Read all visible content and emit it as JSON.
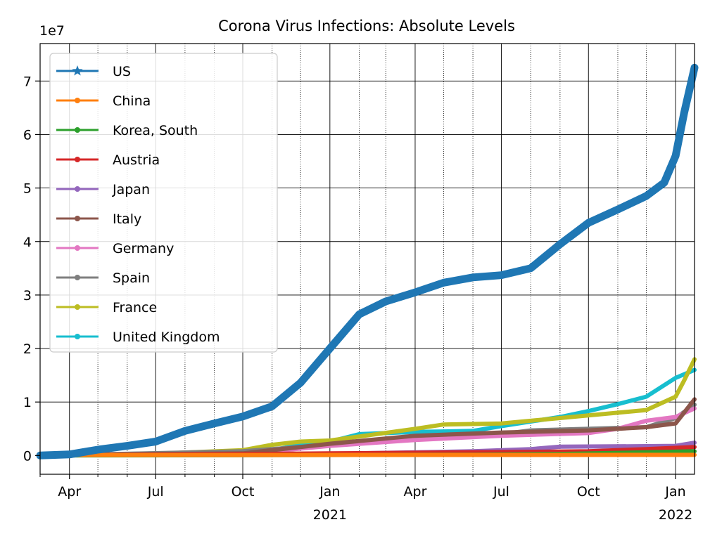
{
  "chart_data": {
    "type": "line",
    "title": "Corona Virus Infections: Absolute Levels",
    "xlabel": "",
    "ylabel": "",
    "y_offset_label": "1e7",
    "y_multiplier": 10000000,
    "xlim": [
      "2020-03-01",
      "2022-01-21"
    ],
    "ylim": [
      -0.35,
      7.7
    ],
    "y_ticks": [
      0,
      1,
      2,
      3,
      4,
      5,
      6,
      7
    ],
    "x_major_ticks": [
      {
        "date": "2020-04-01",
        "label": "Apr",
        "year": ""
      },
      {
        "date": "2020-07-01",
        "label": "Jul",
        "year": ""
      },
      {
        "date": "2020-10-01",
        "label": "Oct",
        "year": ""
      },
      {
        "date": "2021-01-01",
        "label": "Jan",
        "year": "2021"
      },
      {
        "date": "2021-04-01",
        "label": "Apr",
        "year": ""
      },
      {
        "date": "2021-07-01",
        "label": "Jul",
        "year": ""
      },
      {
        "date": "2021-10-01",
        "label": "Oct",
        "year": ""
      },
      {
        "date": "2022-01-01",
        "label": "Jan",
        "year": "2022"
      }
    ],
    "grid": {
      "major": true,
      "minor": true
    },
    "legend_position": "upper-left",
    "series": [
      {
        "name": "US",
        "color": "#1f77b4",
        "marker": "star",
        "points": [
          [
            "2020-03-01",
            0
          ],
          [
            "2020-04-01",
            0.02
          ],
          [
            "2020-05-01",
            0.11
          ],
          [
            "2020-06-01",
            0.18
          ],
          [
            "2020-07-01",
            0.26
          ],
          [
            "2020-08-01",
            0.46
          ],
          [
            "2020-09-01",
            0.6
          ],
          [
            "2020-10-01",
            0.73
          ],
          [
            "2020-11-01",
            0.92
          ],
          [
            "2020-12-01",
            1.36
          ],
          [
            "2021-01-01",
            2.0
          ],
          [
            "2021-02-01",
            2.64
          ],
          [
            "2021-03-01",
            2.88
          ],
          [
            "2021-04-01",
            3.05
          ],
          [
            "2021-05-01",
            3.23
          ],
          [
            "2021-06-01",
            3.33
          ],
          [
            "2021-07-01",
            3.37
          ],
          [
            "2021-08-01",
            3.5
          ],
          [
            "2021-09-01",
            3.95
          ],
          [
            "2021-10-01",
            4.35
          ],
          [
            "2021-11-01",
            4.6
          ],
          [
            "2021-12-01",
            4.85
          ],
          [
            "2021-12-20",
            5.1
          ],
          [
            "2022-01-01",
            5.6
          ],
          [
            "2022-01-10",
            6.4
          ],
          [
            "2022-01-21",
            7.25
          ]
        ]
      },
      {
        "name": "China",
        "color": "#ff7f0e",
        "marker": "dot",
        "points": [
          [
            "2020-03-01",
            0.008
          ],
          [
            "2022-01-21",
            0.012
          ]
        ]
      },
      {
        "name": "Korea, South",
        "color": "#2ca02c",
        "marker": "dot",
        "points": [
          [
            "2020-03-01",
            0
          ],
          [
            "2021-06-01",
            0.015
          ],
          [
            "2021-09-01",
            0.03
          ],
          [
            "2021-12-01",
            0.06
          ],
          [
            "2022-01-21",
            0.08
          ]
        ]
      },
      {
        "name": "Austria",
        "color": "#d62728",
        "marker": "dot",
        "points": [
          [
            "2020-03-01",
            0
          ],
          [
            "2021-01-01",
            0.04
          ],
          [
            "2021-07-01",
            0.065
          ],
          [
            "2021-10-01",
            0.08
          ],
          [
            "2021-12-01",
            0.12
          ],
          [
            "2022-01-21",
            0.16
          ]
        ]
      },
      {
        "name": "Japan",
        "color": "#9467bd",
        "marker": "dot",
        "points": [
          [
            "2020-03-01",
            0
          ],
          [
            "2020-12-01",
            0.02
          ],
          [
            "2021-03-01",
            0.05
          ],
          [
            "2021-06-01",
            0.08
          ],
          [
            "2021-08-01",
            0.12
          ],
          [
            "2021-09-01",
            0.165
          ],
          [
            "2021-12-01",
            0.175
          ],
          [
            "2022-01-01",
            0.18
          ],
          [
            "2022-01-21",
            0.24
          ]
        ]
      },
      {
        "name": "Italy",
        "color": "#8c564b",
        "marker": "dot",
        "points": [
          [
            "2020-03-01",
            0
          ],
          [
            "2020-05-01",
            0.02
          ],
          [
            "2020-10-01",
            0.04
          ],
          [
            "2021-01-01",
            0.22
          ],
          [
            "2021-04-01",
            0.37
          ],
          [
            "2021-07-01",
            0.43
          ],
          [
            "2021-10-01",
            0.47
          ],
          [
            "2021-12-01",
            0.53
          ],
          [
            "2022-01-01",
            0.6
          ],
          [
            "2022-01-21",
            1.05
          ]
        ]
      },
      {
        "name": "Germany",
        "color": "#e377c2",
        "marker": "dot",
        "points": [
          [
            "2020-03-01",
            0
          ],
          [
            "2020-10-01",
            0.03
          ],
          [
            "2021-01-01",
            0.18
          ],
          [
            "2021-04-01",
            0.29
          ],
          [
            "2021-07-01",
            0.37
          ],
          [
            "2021-10-01",
            0.42
          ],
          [
            "2021-11-01",
            0.5
          ],
          [
            "2021-12-01",
            0.65
          ],
          [
            "2022-01-01",
            0.72
          ],
          [
            "2022-01-21",
            0.88
          ]
        ]
      },
      {
        "name": "Spain",
        "color": "#7f7f7f",
        "marker": "dot",
        "points": [
          [
            "2020-03-01",
            0
          ],
          [
            "2020-05-01",
            0.02
          ],
          [
            "2020-10-01",
            0.08
          ],
          [
            "2021-01-01",
            0.2
          ],
          [
            "2021-04-01",
            0.33
          ],
          [
            "2021-07-01",
            0.4
          ],
          [
            "2021-08-01",
            0.47
          ],
          [
            "2021-12-01",
            0.53
          ],
          [
            "2022-01-01",
            0.7
          ],
          [
            "2022-01-21",
            0.95
          ]
        ]
      },
      {
        "name": "France",
        "color": "#bcbd22",
        "marker": "dot",
        "points": [
          [
            "2020-03-01",
            0
          ],
          [
            "2020-06-01",
            0.01
          ],
          [
            "2020-10-01",
            0.1
          ],
          [
            "2020-11-01",
            0.2
          ],
          [
            "2020-12-01",
            0.26
          ],
          [
            "2021-01-01",
            0.28
          ],
          [
            "2021-04-01",
            0.5
          ],
          [
            "2021-05-01",
            0.58
          ],
          [
            "2021-07-01",
            0.6
          ],
          [
            "2021-09-01",
            0.7
          ],
          [
            "2021-12-01",
            0.85
          ],
          [
            "2022-01-01",
            1.1
          ],
          [
            "2022-01-10",
            1.4
          ],
          [
            "2022-01-21",
            1.8
          ]
        ]
      },
      {
        "name": "United Kingdom",
        "color": "#17becf",
        "marker": "dot",
        "points": [
          [
            "2020-03-01",
            0
          ],
          [
            "2020-10-01",
            0.07
          ],
          [
            "2020-11-01",
            0.1
          ],
          [
            "2020-12-01",
            0.2
          ],
          [
            "2021-01-01",
            0.26
          ],
          [
            "2021-02-01",
            0.4
          ],
          [
            "2021-04-01",
            0.44
          ],
          [
            "2021-06-01",
            0.46
          ],
          [
            "2021-07-01",
            0.55
          ],
          [
            "2021-09-01",
            0.72
          ],
          [
            "2021-10-01",
            0.83
          ],
          [
            "2021-11-01",
            0.96
          ],
          [
            "2021-12-01",
            1.1
          ],
          [
            "2022-01-01",
            1.45
          ],
          [
            "2022-01-21",
            1.6
          ]
        ]
      }
    ]
  }
}
